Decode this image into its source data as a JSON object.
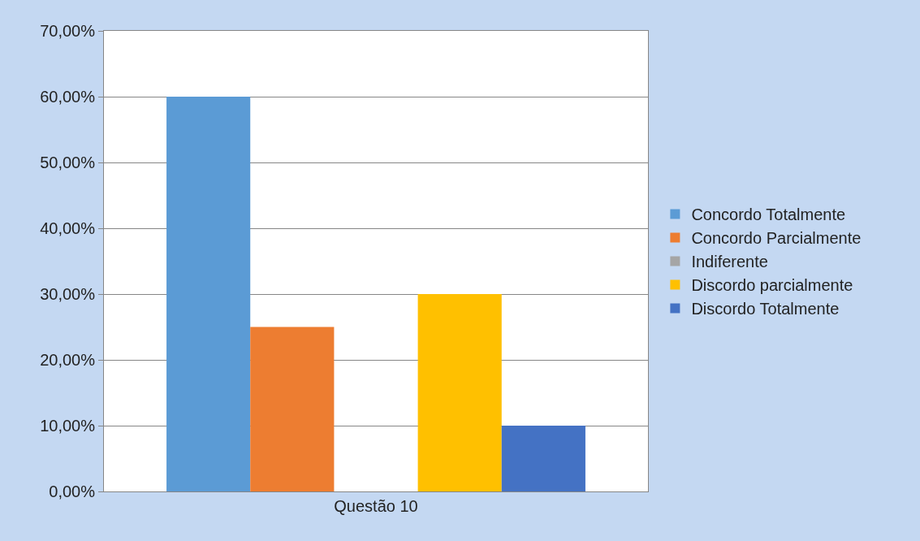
{
  "chart_data": {
    "type": "bar",
    "categories": [
      "Questão 10"
    ],
    "series": [
      {
        "name": "Concordo Totalmente",
        "color": "#5b9bd5",
        "values": [
          60
        ]
      },
      {
        "name": "Concordo Parcialmente",
        "color": "#ed7d31",
        "values": [
          25
        ]
      },
      {
        "name": "Indiferente",
        "color": "#a5a5a5",
        "values": [
          0
        ]
      },
      {
        "name": "Discordo parcialmente",
        "color": "#ffc000",
        "values": [
          30
        ]
      },
      {
        "name": "Discordo Totalmente",
        "color": "#4472c4",
        "values": [
          10
        ]
      }
    ],
    "ylim": [
      0,
      70
    ],
    "yticks": [
      {
        "value": 0,
        "label": "0,00%"
      },
      {
        "value": 10,
        "label": "10,00%"
      },
      {
        "value": 20,
        "label": "20,00%"
      },
      {
        "value": 30,
        "label": "30,00%"
      },
      {
        "value": 40,
        "label": "40,00%"
      },
      {
        "value": 50,
        "label": "50,00%"
      },
      {
        "value": 60,
        "label": "60,00%"
      },
      {
        "value": 70,
        "label": "70,00%"
      }
    ],
    "grid": "y",
    "legend": "right"
  }
}
